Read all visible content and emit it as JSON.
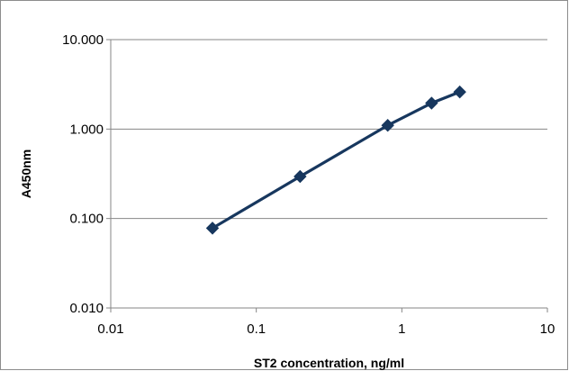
{
  "chart_data": {
    "type": "line",
    "title": "",
    "xlabel": "ST2 concentration, ng/ml",
    "ylabel": "A450nm",
    "x_scale": "log",
    "y_scale": "log",
    "xlim": [
      0.01,
      10
    ],
    "ylim": [
      0.01,
      10
    ],
    "x_ticks": [
      0.01,
      0.1,
      1,
      10
    ],
    "x_tick_labels": [
      "0.01",
      "0.1",
      "1",
      "10"
    ],
    "y_ticks": [
      0.01,
      0.1,
      1,
      10
    ],
    "y_tick_labels": [
      "0.010",
      "0.100",
      "1.000",
      "10.000"
    ],
    "grid": "horizontal",
    "legend": "none",
    "series": [
      {
        "marker": "diamond",
        "color": "#17375e",
        "x": [
          0.05,
          0.2,
          0.8,
          1.6,
          2.5
        ],
        "y": [
          0.078,
          0.295,
          1.1,
          1.95,
          2.6
        ]
      }
    ]
  }
}
